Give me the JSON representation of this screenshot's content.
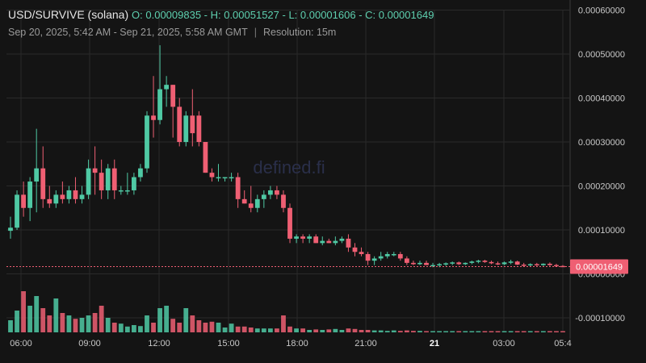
{
  "header": {
    "symbol": "USD/SURVIVE (solana)",
    "ohlc": "O: 0.00009835 - H: 0.00051527 - L: 0.00001606 - C: 0.00001649",
    "range": "Sep 20, 2025, 5:42 AM - Sep 21, 2025, 5:58 AM GMT",
    "separator": "|",
    "resolution": "Resolution: 15m"
  },
  "watermark": "defined.fi",
  "colors": {
    "up": "#4fc9a4",
    "down": "#ef5f73",
    "background": "#141414",
    "grid": "#2a2a2a"
  },
  "chart_data": {
    "type": "candlestick",
    "title": "USD/SURVIVE (solana)",
    "resolution": "15m",
    "ylim": [
      -0.00012,
      0.0006
    ],
    "y_ticks": [
      {
        "value": 0.0006,
        "label": "0.00060000"
      },
      {
        "value": 0.0005,
        "label": "0.00050000"
      },
      {
        "value": 0.0004,
        "label": "0.00040000"
      },
      {
        "value": 0.0003,
        "label": "0.00030000"
      },
      {
        "value": 0.0002,
        "label": "0.00020000"
      },
      {
        "value": 0.0001,
        "label": "0.00010000"
      },
      {
        "value": 0.0,
        "label": "0.00000000"
      },
      {
        "value": -0.0001,
        "label": "-0.00010000"
      }
    ],
    "x_ticks": [
      {
        "label": "06:00",
        "bold": false
      },
      {
        "label": "09:00",
        "bold": false
      },
      {
        "label": "12:00",
        "bold": false
      },
      {
        "label": "15:00",
        "bold": false
      },
      {
        "label": "18:00",
        "bold": false
      },
      {
        "label": "21:00",
        "bold": false
      },
      {
        "label": "21",
        "bold": true
      },
      {
        "label": "03:00",
        "bold": false
      },
      {
        "label": "05:4",
        "bold": false
      }
    ],
    "grid": true,
    "last_price": {
      "value": 1.649e-05,
      "label": "0.00001649"
    },
    "candles": [
      {
        "o": 9.8e-05,
        "h": 0.00013,
        "l": 8e-05,
        "c": 0.000105,
        "v": 0.25
      },
      {
        "o": 0.000105,
        "h": 0.00019,
        "l": 0.0001,
        "c": 0.00018,
        "v": 0.45
      },
      {
        "o": 0.00018,
        "h": 0.00021,
        "l": 0.00013,
        "c": 0.00015,
        "v": 0.85
      },
      {
        "o": 0.00015,
        "h": 0.00022,
        "l": 0.00012,
        "c": 0.00021,
        "v": 0.55
      },
      {
        "o": 0.00021,
        "h": 0.00033,
        "l": 0.00014,
        "c": 0.00024,
        "v": 0.75
      },
      {
        "o": 0.00024,
        "h": 0.00029,
        "l": 0.00015,
        "c": 0.00017,
        "v": 0.5
      },
      {
        "o": 0.00017,
        "h": 0.0002,
        "l": 0.00015,
        "c": 0.00016,
        "v": 0.35
      },
      {
        "o": 0.00016,
        "h": 0.00019,
        "l": 0.00015,
        "c": 0.00018,
        "v": 0.7
      },
      {
        "o": 0.00018,
        "h": 0.00021,
        "l": 0.00016,
        "c": 0.00017,
        "v": 0.4
      },
      {
        "o": 0.00017,
        "h": 0.0002,
        "l": 0.00016,
        "c": 0.00019,
        "v": 0.35
      },
      {
        "o": 0.00019,
        "h": 0.00022,
        "l": 0.00016,
        "c": 0.00017,
        "v": 0.28
      },
      {
        "o": 0.00017,
        "h": 0.0002,
        "l": 0.00016,
        "c": 0.00018,
        "v": 0.3
      },
      {
        "o": 0.00018,
        "h": 0.00026,
        "l": 0.00017,
        "c": 0.00024,
        "v": 0.35
      },
      {
        "o": 0.00024,
        "h": 0.00029,
        "l": 0.00018,
        "c": 0.00023,
        "v": 0.4
      },
      {
        "o": 0.00023,
        "h": 0.00026,
        "l": 0.00017,
        "c": 0.00019,
        "v": 0.55
      },
      {
        "o": 0.00019,
        "h": 0.00025,
        "l": 0.00017,
        "c": 0.00024,
        "v": 0.3
      },
      {
        "o": 0.00024,
        "h": 0.00026,
        "l": 0.00017,
        "c": 0.00019,
        "v": 0.2
      },
      {
        "o": 0.00019,
        "h": 0.0002,
        "l": 0.00018,
        "c": 0.00019,
        "v": 0.18
      },
      {
        "o": 0.00019,
        "h": 0.00023,
        "l": 0.00018,
        "c": 0.00019,
        "v": 0.12
      },
      {
        "o": 0.00019,
        "h": 0.00023,
        "l": 0.00018,
        "c": 0.00022,
        "v": 0.15
      },
      {
        "o": 0.00022,
        "h": 0.00025,
        "l": 0.00021,
        "c": 0.00024,
        "v": 0.13
      },
      {
        "o": 0.00024,
        "h": 0.00037,
        "l": 0.00023,
        "c": 0.00036,
        "v": 0.35
      },
      {
        "o": 0.00036,
        "h": 0.00045,
        "l": 0.00031,
        "c": 0.00035,
        "v": 0.2
      },
      {
        "o": 0.00035,
        "h": 0.00052,
        "l": 0.00034,
        "c": 0.00042,
        "v": 0.5
      },
      {
        "o": 0.00042,
        "h": 0.00045,
        "l": 0.00038,
        "c": 0.00043,
        "v": 0.55
      },
      {
        "o": 0.00043,
        "h": 0.00043,
        "l": 0.00031,
        "c": 0.00038,
        "v": 0.28
      },
      {
        "o": 0.00038,
        "h": 0.0004,
        "l": 0.00029,
        "c": 0.0003,
        "v": 0.2
      },
      {
        "o": 0.0003,
        "h": 0.00037,
        "l": 0.00029,
        "c": 0.00036,
        "v": 0.5
      },
      {
        "o": 0.00036,
        "h": 0.00042,
        "l": 0.00029,
        "c": 0.00032,
        "v": 0.35
      },
      {
        "o": 0.00036,
        "h": 0.00037,
        "l": 0.00029,
        "c": 0.0003,
        "v": 0.25
      },
      {
        "o": 0.0003,
        "h": 0.0003,
        "l": 0.00023,
        "c": 0.00023,
        "v": 0.2
      },
      {
        "o": 0.00023,
        "h": 0.00024,
        "l": 0.00021,
        "c": 0.00022,
        "v": 0.22
      },
      {
        "o": 0.00022,
        "h": 0.00025,
        "l": 0.00021,
        "c": 0.00022,
        "v": 0.2
      },
      {
        "o": 0.00022,
        "h": 0.00022,
        "l": 0.00021,
        "c": 0.00022,
        "v": 0.1
      },
      {
        "o": 0.00022,
        "h": 0.00023,
        "l": 0.00021,
        "c": 0.00022,
        "v": 0.18
      },
      {
        "o": 0.00022,
        "h": 0.00023,
        "l": 0.00015,
        "c": 0.00017,
        "v": 0.12
      },
      {
        "o": 0.00017,
        "h": 0.00019,
        "l": 0.00016,
        "c": 0.00016,
        "v": 0.12
      },
      {
        "o": 0.00016,
        "h": 0.0002,
        "l": 0.00014,
        "c": 0.00015,
        "v": 0.1
      },
      {
        "o": 0.00015,
        "h": 0.00018,
        "l": 0.00014,
        "c": 0.00017,
        "v": 0.08
      },
      {
        "o": 0.00017,
        "h": 0.00019,
        "l": 0.00015,
        "c": 0.00018,
        "v": 0.08
      },
      {
        "o": 0.00018,
        "h": 0.0002,
        "l": 0.00017,
        "c": 0.00019,
        "v": 0.08
      },
      {
        "o": 0.00019,
        "h": 0.0002,
        "l": 0.00017,
        "c": 0.00018,
        "v": 0.08
      },
      {
        "o": 0.00018,
        "h": 0.00019,
        "l": 0.00014,
        "c": 0.00015,
        "v": 0.35
      },
      {
        "o": 0.00015,
        "h": 0.00016,
        "l": 7e-05,
        "c": 8e-05,
        "v": 0.12
      },
      {
        "o": 8e-05,
        "h": 9e-05,
        "l": 7e-05,
        "c": 8.5e-05,
        "v": 0.08
      },
      {
        "o": 8.5e-05,
        "h": 9e-05,
        "l": 7e-05,
        "c": 8e-05,
        "v": 0.08
      },
      {
        "o": 8e-05,
        "h": 9e-05,
        "l": 7e-05,
        "c": 8.5e-05,
        "v": 0.05
      },
      {
        "o": 8.5e-05,
        "h": 9e-05,
        "l": 7e-05,
        "c": 7e-05,
        "v": 0.06
      },
      {
        "o": 7e-05,
        "h": 8.5e-05,
        "l": 6.5e-05,
        "c": 7.5e-05,
        "v": 0.05
      },
      {
        "o": 7.5e-05,
        "h": 8e-05,
        "l": 7e-05,
        "c": 7e-05,
        "v": 0.06
      },
      {
        "o": 7e-05,
        "h": 8.5e-05,
        "l": 6.5e-05,
        "c": 7.5e-05,
        "v": 0.07
      },
      {
        "o": 7.5e-05,
        "h": 8.5e-05,
        "l": 7e-05,
        "c": 8e-05,
        "v": 0.05
      },
      {
        "o": 8e-05,
        "h": 9e-05,
        "l": 5e-05,
        "c": 6e-05,
        "v": 0.08
      },
      {
        "o": 6e-05,
        "h": 7e-05,
        "l": 4e-05,
        "c": 5e-05,
        "v": 0.07
      },
      {
        "o": 5e-05,
        "h": 6e-05,
        "l": 4e-05,
        "c": 4.5e-05,
        "v": 0.05
      },
      {
        "o": 4.5e-05,
        "h": 5e-05,
        "l": 2e-05,
        "c": 3e-05,
        "v": 0.05
      },
      {
        "o": 3e-05,
        "h": 4e-05,
        "l": 2e-05,
        "c": 3.5e-05,
        "v": 0.04
      },
      {
        "o": 3.5e-05,
        "h": 5e-05,
        "l": 3e-05,
        "c": 4e-05,
        "v": 0.04
      },
      {
        "o": 4e-05,
        "h": 5e-05,
        "l": 3.5e-05,
        "c": 4.5e-05,
        "v": 0.03
      },
      {
        "o": 4.5e-05,
        "h": 5e-05,
        "l": 4e-05,
        "c": 4.5e-05,
        "v": 0.04
      },
      {
        "o": 4.5e-05,
        "h": 5e-05,
        "l": 3e-05,
        "c": 3.5e-05,
        "v": 0.03
      },
      {
        "o": 3.5e-05,
        "h": 4e-05,
        "l": 2e-05,
        "c": 2.5e-05,
        "v": 0.04
      },
      {
        "o": 2.5e-05,
        "h": 3e-05,
        "l": 2e-05,
        "c": 2.2e-05,
        "v": 0.03
      },
      {
        "o": 2.2e-05,
        "h": 3e-05,
        "l": 2e-05,
        "c": 2.5e-05,
        "v": 0.03
      },
      {
        "o": 2.5e-05,
        "h": 3e-05,
        "l": 2e-05,
        "c": 2e-05,
        "v": 0.02
      },
      {
        "o": 2e-05,
        "h": 2.5e-05,
        "l": 1.5e-05,
        "c": 2e-05,
        "v": 0.02
      },
      {
        "o": 2e-05,
        "h": 2.5e-05,
        "l": 1.5e-05,
        "c": 2.2e-05,
        "v": 0.02
      },
      {
        "o": 2.2e-05,
        "h": 2.6e-05,
        "l": 1.8e-05,
        "c": 2.4e-05,
        "v": 0.02
      },
      {
        "o": 2.4e-05,
        "h": 2.8e-05,
        "l": 2e-05,
        "c": 2.6e-05,
        "v": 0.02
      },
      {
        "o": 2.6e-05,
        "h": 2.8e-05,
        "l": 2e-05,
        "c": 2.2e-05,
        "v": 0.02
      },
      {
        "o": 2.2e-05,
        "h": 2.6e-05,
        "l": 2e-05,
        "c": 2.5e-05,
        "v": 0.02
      },
      {
        "o": 2.5e-05,
        "h": 3e-05,
        "l": 2.2e-05,
        "c": 2.8e-05,
        "v": 0.02
      },
      {
        "o": 2.8e-05,
        "h": 3.2e-05,
        "l": 2.4e-05,
        "c": 3e-05,
        "v": 0.02
      },
      {
        "o": 3e-05,
        "h": 3.2e-05,
        "l": 2.5e-05,
        "c": 2.7e-05,
        "v": 0.02
      },
      {
        "o": 2.7e-05,
        "h": 3e-05,
        "l": 2.2e-05,
        "c": 2.4e-05,
        "v": 0.02
      },
      {
        "o": 2.4e-05,
        "h": 2.8e-05,
        "l": 2e-05,
        "c": 2.2e-05,
        "v": 0.02
      },
      {
        "o": 2.2e-05,
        "h": 2.8e-05,
        "l": 2e-05,
        "c": 2.6e-05,
        "v": 0.02
      },
      {
        "o": 2.6e-05,
        "h": 3.2e-05,
        "l": 2.2e-05,
        "c": 2.8e-05,
        "v": 0.02
      },
      {
        "o": 2.8e-05,
        "h": 3e-05,
        "l": 2e-05,
        "c": 2.1e-05,
        "v": 0.02
      },
      {
        "o": 2.1e-05,
        "h": 2.5e-05,
        "l": 1.7e-05,
        "c": 2e-05,
        "v": 0.02
      },
      {
        "o": 2e-05,
        "h": 2.4e-05,
        "l": 1.7e-05,
        "c": 2.2e-05,
        "v": 0.02
      },
      {
        "o": 2.2e-05,
        "h": 2.5e-05,
        "l": 1.8e-05,
        "c": 2e-05,
        "v": 0.02
      },
      {
        "o": 2e-05,
        "h": 2.4e-05,
        "l": 1.8e-05,
        "c": 2.3e-05,
        "v": 0.02
      },
      {
        "o": 2.3e-05,
        "h": 2.6e-05,
        "l": 1.8e-05,
        "c": 2e-05,
        "v": 0.02
      },
      {
        "o": 2e-05,
        "h": 2.3e-05,
        "l": 1.7e-05,
        "c": 1.8e-05,
        "v": 0.02
      },
      {
        "o": 1.8e-05,
        "h": 2e-05,
        "l": 1.6e-05,
        "c": 1.65e-05,
        "v": 0.02
      }
    ]
  }
}
